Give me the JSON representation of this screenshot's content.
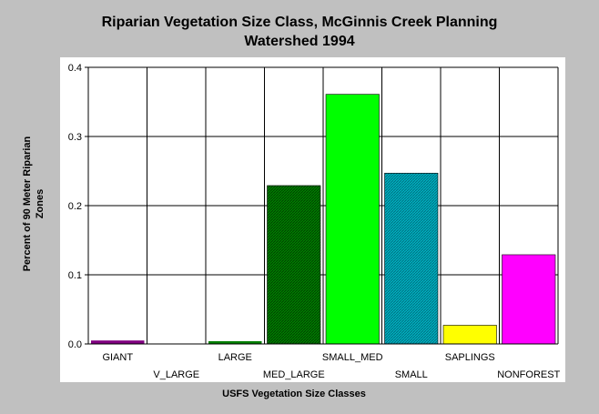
{
  "chart_data": {
    "type": "bar",
    "title_line1": "Riparian Vegetation Size Class, McGinnis Creek Planning",
    "title_line2": "Watershed 1994",
    "xlabel": "USFS Vegetation Size Classes",
    "ylabel_line1": "Percent of 90 Meter Riparian",
    "ylabel_line2": "Zones",
    "categories": [
      "GIANT",
      "V_LARGE",
      "LARGE",
      "MED_LARGE",
      "SMALL_MED",
      "SMALL",
      "SAPLINGS",
      "NONFOREST"
    ],
    "values": [
      0.005,
      0.0,
      0.002,
      0.229,
      0.361,
      0.247,
      0.027,
      0.129
    ],
    "colors": [
      "#800080",
      "#808080",
      "#008000",
      "#008000",
      "#00ff00",
      "#00a0a0",
      "#ffff00",
      "#ff00ff"
    ],
    "hatched": [
      false,
      false,
      false,
      true,
      false,
      true,
      false,
      false
    ],
    "ylim": [
      0,
      0.4
    ],
    "yticks": [
      "0.0",
      "0.1",
      "0.2",
      "0.3",
      "0.4"
    ],
    "ytick_values": [
      0,
      0.1,
      0.2,
      0.3,
      0.4
    ],
    "grid": true,
    "legend": "none"
  }
}
